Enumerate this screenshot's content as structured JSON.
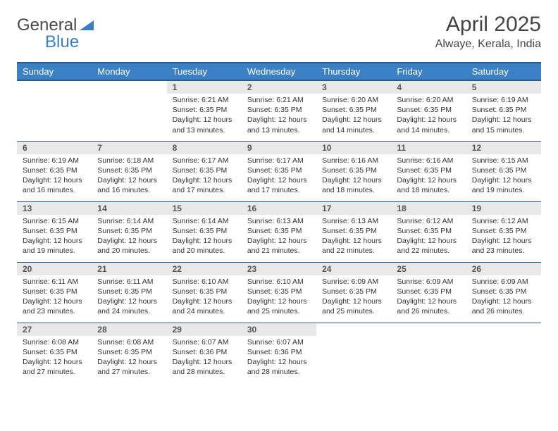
{
  "brand": {
    "name_part1": "General",
    "name_part2": "Blue"
  },
  "title": "April 2025",
  "location": "Alwaye, Kerala, India",
  "colors": {
    "header_bg": "#3b7fc4",
    "header_border": "#2a5a8a",
    "daynum_bg": "#e8e8e8",
    "text": "#333333",
    "brand_blue": "#3b7fc4"
  },
  "weekdays": [
    "Sunday",
    "Monday",
    "Tuesday",
    "Wednesday",
    "Thursday",
    "Friday",
    "Saturday"
  ],
  "weeks": [
    [
      null,
      null,
      {
        "n": "1",
        "sr": "Sunrise: 6:21 AM",
        "ss": "Sunset: 6:35 PM",
        "dl": "Daylight: 12 hours and 13 minutes."
      },
      {
        "n": "2",
        "sr": "Sunrise: 6:21 AM",
        "ss": "Sunset: 6:35 PM",
        "dl": "Daylight: 12 hours and 13 minutes."
      },
      {
        "n": "3",
        "sr": "Sunrise: 6:20 AM",
        "ss": "Sunset: 6:35 PM",
        "dl": "Daylight: 12 hours and 14 minutes."
      },
      {
        "n": "4",
        "sr": "Sunrise: 6:20 AM",
        "ss": "Sunset: 6:35 PM",
        "dl": "Daylight: 12 hours and 14 minutes."
      },
      {
        "n": "5",
        "sr": "Sunrise: 6:19 AM",
        "ss": "Sunset: 6:35 PM",
        "dl": "Daylight: 12 hours and 15 minutes."
      }
    ],
    [
      {
        "n": "6",
        "sr": "Sunrise: 6:19 AM",
        "ss": "Sunset: 6:35 PM",
        "dl": "Daylight: 12 hours and 16 minutes."
      },
      {
        "n": "7",
        "sr": "Sunrise: 6:18 AM",
        "ss": "Sunset: 6:35 PM",
        "dl": "Daylight: 12 hours and 16 minutes."
      },
      {
        "n": "8",
        "sr": "Sunrise: 6:17 AM",
        "ss": "Sunset: 6:35 PM",
        "dl": "Daylight: 12 hours and 17 minutes."
      },
      {
        "n": "9",
        "sr": "Sunrise: 6:17 AM",
        "ss": "Sunset: 6:35 PM",
        "dl": "Daylight: 12 hours and 17 minutes."
      },
      {
        "n": "10",
        "sr": "Sunrise: 6:16 AM",
        "ss": "Sunset: 6:35 PM",
        "dl": "Daylight: 12 hours and 18 minutes."
      },
      {
        "n": "11",
        "sr": "Sunrise: 6:16 AM",
        "ss": "Sunset: 6:35 PM",
        "dl": "Daylight: 12 hours and 18 minutes."
      },
      {
        "n": "12",
        "sr": "Sunrise: 6:15 AM",
        "ss": "Sunset: 6:35 PM",
        "dl": "Daylight: 12 hours and 19 minutes."
      }
    ],
    [
      {
        "n": "13",
        "sr": "Sunrise: 6:15 AM",
        "ss": "Sunset: 6:35 PM",
        "dl": "Daylight: 12 hours and 19 minutes."
      },
      {
        "n": "14",
        "sr": "Sunrise: 6:14 AM",
        "ss": "Sunset: 6:35 PM",
        "dl": "Daylight: 12 hours and 20 minutes."
      },
      {
        "n": "15",
        "sr": "Sunrise: 6:14 AM",
        "ss": "Sunset: 6:35 PM",
        "dl": "Daylight: 12 hours and 20 minutes."
      },
      {
        "n": "16",
        "sr": "Sunrise: 6:13 AM",
        "ss": "Sunset: 6:35 PM",
        "dl": "Daylight: 12 hours and 21 minutes."
      },
      {
        "n": "17",
        "sr": "Sunrise: 6:13 AM",
        "ss": "Sunset: 6:35 PM",
        "dl": "Daylight: 12 hours and 22 minutes."
      },
      {
        "n": "18",
        "sr": "Sunrise: 6:12 AM",
        "ss": "Sunset: 6:35 PM",
        "dl": "Daylight: 12 hours and 22 minutes."
      },
      {
        "n": "19",
        "sr": "Sunrise: 6:12 AM",
        "ss": "Sunset: 6:35 PM",
        "dl": "Daylight: 12 hours and 23 minutes."
      }
    ],
    [
      {
        "n": "20",
        "sr": "Sunrise: 6:11 AM",
        "ss": "Sunset: 6:35 PM",
        "dl": "Daylight: 12 hours and 23 minutes."
      },
      {
        "n": "21",
        "sr": "Sunrise: 6:11 AM",
        "ss": "Sunset: 6:35 PM",
        "dl": "Daylight: 12 hours and 24 minutes."
      },
      {
        "n": "22",
        "sr": "Sunrise: 6:10 AM",
        "ss": "Sunset: 6:35 PM",
        "dl": "Daylight: 12 hours and 24 minutes."
      },
      {
        "n": "23",
        "sr": "Sunrise: 6:10 AM",
        "ss": "Sunset: 6:35 PM",
        "dl": "Daylight: 12 hours and 25 minutes."
      },
      {
        "n": "24",
        "sr": "Sunrise: 6:09 AM",
        "ss": "Sunset: 6:35 PM",
        "dl": "Daylight: 12 hours and 25 minutes."
      },
      {
        "n": "25",
        "sr": "Sunrise: 6:09 AM",
        "ss": "Sunset: 6:35 PM",
        "dl": "Daylight: 12 hours and 26 minutes."
      },
      {
        "n": "26",
        "sr": "Sunrise: 6:09 AM",
        "ss": "Sunset: 6:35 PM",
        "dl": "Daylight: 12 hours and 26 minutes."
      }
    ],
    [
      {
        "n": "27",
        "sr": "Sunrise: 6:08 AM",
        "ss": "Sunset: 6:35 PM",
        "dl": "Daylight: 12 hours and 27 minutes."
      },
      {
        "n": "28",
        "sr": "Sunrise: 6:08 AM",
        "ss": "Sunset: 6:35 PM",
        "dl": "Daylight: 12 hours and 27 minutes."
      },
      {
        "n": "29",
        "sr": "Sunrise: 6:07 AM",
        "ss": "Sunset: 6:36 PM",
        "dl": "Daylight: 12 hours and 28 minutes."
      },
      {
        "n": "30",
        "sr": "Sunrise: 6:07 AM",
        "ss": "Sunset: 6:36 PM",
        "dl": "Daylight: 12 hours and 28 minutes."
      },
      null,
      null,
      null
    ]
  ]
}
